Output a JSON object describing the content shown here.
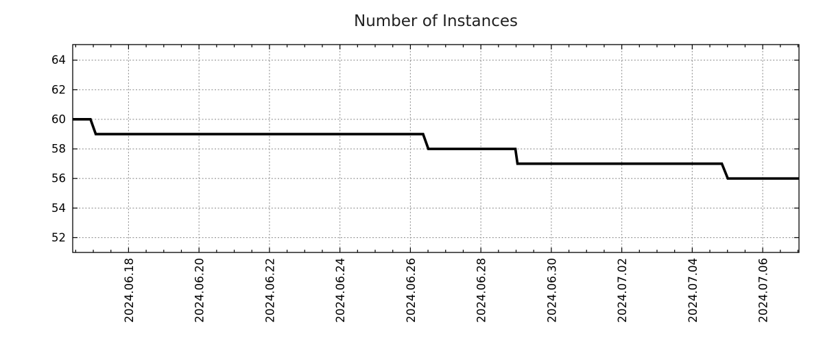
{
  "chart_data": {
    "type": "line",
    "title": "Number of Instances",
    "xlabel": "",
    "ylabel": "",
    "legend": "none",
    "grid": {
      "show": true,
      "style": "dotted",
      "color": "#909090"
    },
    "colors": {
      "line": "#000000",
      "axis": "#000000",
      "background": "#ffffff",
      "title_text": "#1f1f1f",
      "tick_text": "#000000"
    },
    "x_axis": {
      "kind": "date",
      "unit": "days relative to 2024-06-18 00:00",
      "range_days": [
        -1.585,
        19.03
      ],
      "major_tick_days": [
        0,
        2,
        4,
        6,
        8,
        10,
        12,
        14,
        16,
        18
      ],
      "tick_labels": [
        "2024.06.18",
        "2024.06.20",
        "2024.06.22",
        "2024.06.24",
        "2024.06.26",
        "2024.06.28",
        "2024.06.30",
        "2024.07.02",
        "2024.07.04",
        "2024.07.06"
      ],
      "minor_tick_step_days": 0.5,
      "tick_label_rotation_deg": 90
    },
    "y_axis": {
      "range": [
        51.0,
        65.05
      ],
      "major_ticks": [
        52,
        54,
        56,
        58,
        60,
        62,
        64
      ],
      "tick_labels": [
        "52",
        "54",
        "56",
        "58",
        "60",
        "62",
        "64"
      ]
    },
    "series": [
      {
        "name": "Number of Instances",
        "color": "#000000",
        "points": [
          {
            "t_days": -1.585,
            "approx_date": "2024-06-16 10:00",
            "value": 60
          },
          {
            "t_days": -1.08,
            "approx_date": "2024-06-16 22:00",
            "value": 60
          },
          {
            "t_days": -0.93,
            "approx_date": "2024-06-17 02:00",
            "value": 59
          },
          {
            "t_days": 8.36,
            "approx_date": "2024-06-26 09:00",
            "value": 59
          },
          {
            "t_days": 8.51,
            "approx_date": "2024-06-26 12:00",
            "value": 58
          },
          {
            "t_days": 10.98,
            "approx_date": "2024-06-28 23:30",
            "value": 58
          },
          {
            "t_days": 11.04,
            "approx_date": "2024-06-29 01:00",
            "value": 57
          },
          {
            "t_days": 16.84,
            "approx_date": "2024-07-04 20:00",
            "value": 57
          },
          {
            "t_days": 17.01,
            "approx_date": "2024-07-05 00:00",
            "value": 56
          },
          {
            "t_days": 19.03,
            "approx_date": "2024-07-07 00:45",
            "value": 56
          }
        ]
      }
    ],
    "step_events": [
      {
        "approx_date": "2024-06-17",
        "from": 60,
        "to": 59
      },
      {
        "approx_date": "2024-06-26",
        "from": 59,
        "to": 58
      },
      {
        "approx_date": "2024-06-29",
        "from": 58,
        "to": 57
      },
      {
        "approx_date": "2024-07-05",
        "from": 57,
        "to": 56
      }
    ]
  }
}
